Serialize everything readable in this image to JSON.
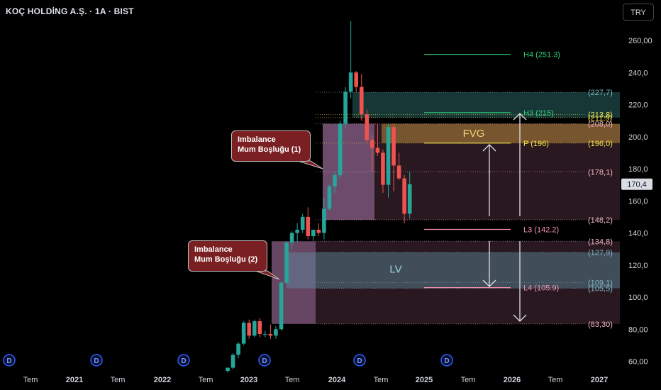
{
  "header": {
    "symbol_title": "KOÇ HOLDİNG A.Ş. · 1A · BIST",
    "currency_button": "TRY"
  },
  "colors": {
    "background": "#000000",
    "up_candle": "#26a69a",
    "down_candle": "#ef5350",
    "axis_text": "#d1d4dc",
    "dividend_marker": "#2962ff",
    "pivot_p": "#f2e14a",
    "pivot_h": "#2fd27a",
    "pivot_l": "#f48fb1",
    "fvg_fill": "#b8893a",
    "lv_fill": "#5f8fa0",
    "imbalance_fill": "#c28cc8",
    "range_box": "#5a3548",
    "callout_bg": "#7a1f22"
  },
  "callouts": [
    {
      "line1": "Imbalance",
      "line2": "Mum Boşluğu (1)"
    },
    {
      "line1": "Imbalance",
      "line2": "Mum Boşluğu (2)"
    }
  ],
  "zones": {
    "fvg_label": "FVG",
    "lv_label": "LV"
  },
  "chart_data": {
    "type": "candlestick",
    "timeframe": "1 month",
    "ylim": [
      53,
      275
    ],
    "x_axis_labels": [
      "Tem",
      "2021",
      "Tem",
      "2022",
      "Tem",
      "2023",
      "Tem",
      "2024",
      "Tem",
      "2025",
      "Tem",
      "2026",
      "Tem",
      "2027"
    ],
    "y_ticks": [
      "60,00",
      "80,00",
      "100,0",
      "120,0",
      "140,0",
      "160,0",
      "180,0",
      "200,0",
      "220,0",
      "240,0",
      "260,00"
    ],
    "last_price_label": "170,4",
    "candles": [
      {
        "o": 54,
        "h": 56,
        "l": 53,
        "c": 56
      },
      {
        "o": 56,
        "h": 65,
        "l": 55,
        "c": 64
      },
      {
        "o": 64,
        "h": 72,
        "l": 62,
        "c": 71
      },
      {
        "o": 71,
        "h": 85,
        "l": 70,
        "c": 84
      },
      {
        "o": 84,
        "h": 86,
        "l": 74,
        "c": 76
      },
      {
        "o": 76,
        "h": 86,
        "l": 75,
        "c": 85
      },
      {
        "o": 85,
        "h": 87,
        "l": 75,
        "c": 77
      },
      {
        "o": 77,
        "h": 79,
        "l": 75,
        "c": 77
      },
      {
        "o": 77,
        "h": 83,
        "l": 74,
        "c": 76
      },
      {
        "o": 76,
        "h": 82,
        "l": 74,
        "c": 80
      },
      {
        "o": 80,
        "h": 110,
        "l": 79,
        "c": 109
      },
      {
        "o": 109,
        "h": 135,
        "l": 108,
        "c": 134
      },
      {
        "o": 134,
        "h": 141,
        "l": 130,
        "c": 140
      },
      {
        "o": 140,
        "h": 146,
        "l": 134,
        "c": 142
      },
      {
        "o": 142,
        "h": 152,
        "l": 140,
        "c": 150
      },
      {
        "o": 150,
        "h": 156,
        "l": 136,
        "c": 138
      },
      {
        "o": 138,
        "h": 142,
        "l": 135,
        "c": 142
      },
      {
        "o": 142,
        "h": 146,
        "l": 138,
        "c": 140
      },
      {
        "o": 140,
        "h": 162,
        "l": 136,
        "c": 155
      },
      {
        "o": 155,
        "h": 170,
        "l": 154,
        "c": 169
      },
      {
        "o": 169,
        "h": 178,
        "l": 165,
        "c": 176
      },
      {
        "o": 176,
        "h": 210,
        "l": 174,
        "c": 208
      },
      {
        "o": 208,
        "h": 231,
        "l": 205,
        "c": 228
      },
      {
        "o": 228,
        "h": 272,
        "l": 224,
        "c": 240
      },
      {
        "o": 240,
        "h": 241,
        "l": 228,
        "c": 231
      },
      {
        "o": 231,
        "h": 239,
        "l": 210,
        "c": 214
      },
      {
        "o": 214,
        "h": 217,
        "l": 196,
        "c": 198
      },
      {
        "o": 198,
        "h": 201,
        "l": 178,
        "c": 193
      },
      {
        "o": 193,
        "h": 208,
        "l": 188,
        "c": 190
      },
      {
        "o": 190,
        "h": 192,
        "l": 165,
        "c": 170
      },
      {
        "o": 170,
        "h": 208,
        "l": 162,
        "c": 206
      },
      {
        "o": 206,
        "h": 208,
        "l": 166,
        "c": 182
      },
      {
        "o": 182,
        "h": 190,
        "l": 173,
        "c": 174
      },
      {
        "o": 174,
        "h": 176,
        "l": 146,
        "c": 152
      },
      {
        "o": 152,
        "h": 178,
        "l": 149,
        "c": 170.4
      }
    ],
    "pivot_levels": [
      {
        "label": "H4 (251.3)",
        "value": 251.3,
        "color": "#2fd27a"
      },
      {
        "label": "H3 (215)",
        "value": 215,
        "color": "#2fd27a"
      },
      {
        "label": "P (196)",
        "value": 196,
        "color": "#f2e14a"
      },
      {
        "label": "L3 (142.2)",
        "value": 142.2,
        "color": "#f48fb1"
      },
      {
        "label": "L4 (105.9)",
        "value": 105.9,
        "color": "#f48fb1"
      }
    ],
    "level_labels": [
      {
        "label": "(227,7)",
        "value": 227.7,
        "color": "#7fb7c8"
      },
      {
        "label": "(213,8)",
        "value": 213.8,
        "color": "#f2e14a"
      },
      {
        "label": "(211,9)",
        "value": 211.9,
        "color": "#f2e14a"
      },
      {
        "label": "(208,0)",
        "value": 208.0,
        "color": "#f4b6c6"
      },
      {
        "label": "(196,0)",
        "value": 196.0,
        "color": "#f2e14a"
      },
      {
        "label": "(178,1)",
        "value": 178.1,
        "color": "#f4b6c6"
      },
      {
        "label": "(148,2)",
        "value": 148.2,
        "color": "#f4b6c6"
      },
      {
        "label": "(134,8)",
        "value": 134.8,
        "color": "#f4b6c6"
      },
      {
        "label": "(127,9)",
        "value": 127.9,
        "color": "#7fb7c8"
      },
      {
        "label": "(109,1)",
        "value": 109.1,
        "color": "#7fb7c8"
      },
      {
        "label": "(105,5)",
        "value": 105.5,
        "color": "#7fb7c8"
      },
      {
        "label": "(83,30)",
        "value": 83.3,
        "color": "#f4b6c6"
      }
    ],
    "dividend_marker_label": "D",
    "dividend_marker_count": 6
  }
}
